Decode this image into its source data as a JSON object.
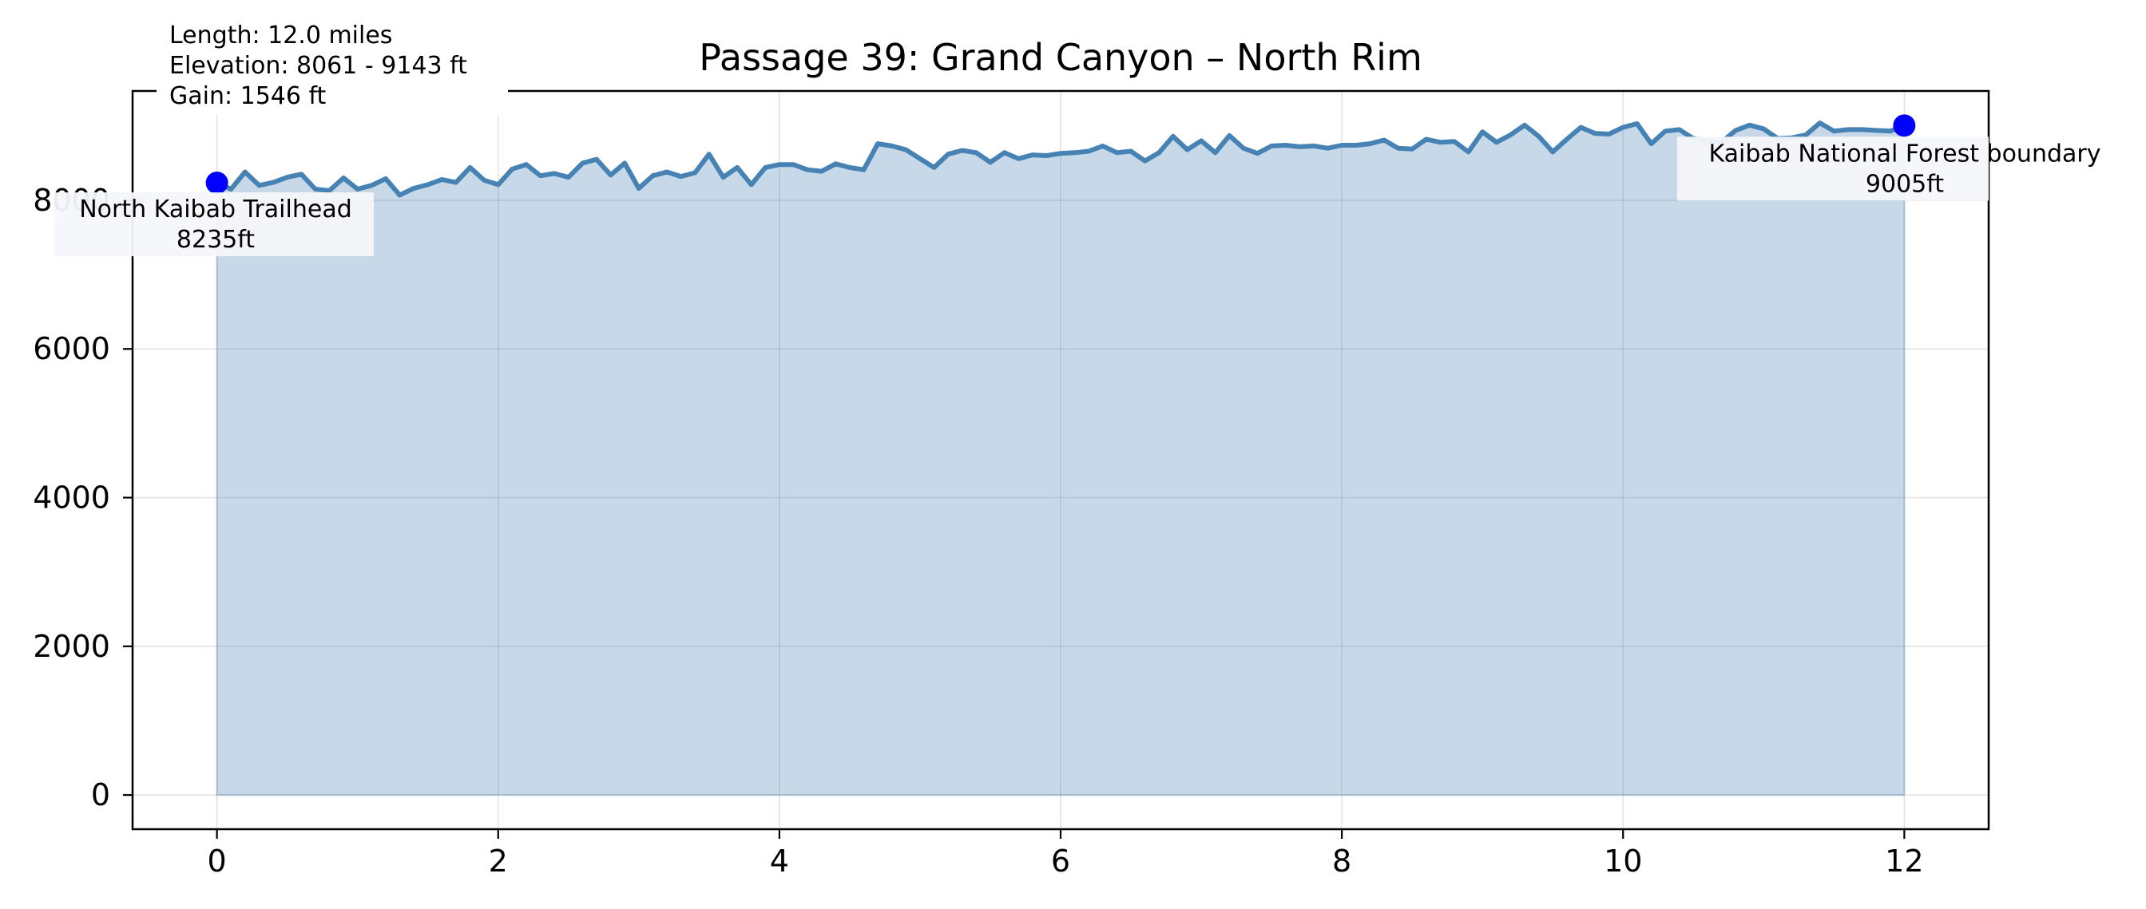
{
  "chart_data": {
    "type": "area",
    "title": "Passage 39: Grand Canyon – North Rim",
    "xlabel": "",
    "ylabel": "",
    "xlim": [
      -0.6,
      12.6
    ],
    "ylim": [
      -460,
      9470
    ],
    "x_ticks": [
      0,
      2,
      4,
      6,
      8,
      10,
      12
    ],
    "x_tick_labels": [
      "0",
      "2",
      "4",
      "6",
      "8",
      "10",
      "12"
    ],
    "y_ticks": [
      0,
      2000,
      4000,
      6000,
      8000
    ],
    "y_tick_labels": [
      "0",
      "2000",
      "4000",
      "6000",
      "8000"
    ],
    "grid": true,
    "line_color": "#4682b4",
    "fill_color": "#4682b4",
    "fill_opacity": 0.3,
    "marker_color": "#0000ff",
    "stats": {
      "length": "Length: 12.0 miles",
      "elevation": "Elevation: 8061 - 9143 ft",
      "gain": "Gain: 1546 ft"
    },
    "series": [
      {
        "x": [
          0,
          0.1,
          0.2,
          0.3,
          0.4,
          0.5,
          0.6,
          0.7,
          0.8,
          0.9,
          1.0,
          1.1,
          1.2,
          1.3,
          1.4,
          1.5,
          1.6,
          1.7,
          1.8,
          1.9,
          2.0,
          2.1,
          2.2,
          2.3,
          2.4,
          2.5,
          2.6,
          2.7,
          2.8,
          2.9,
          3.0,
          3.1,
          3.2,
          3.3,
          3.4,
          3.5,
          3.6,
          3.7,
          3.8,
          3.9,
          4.0,
          4.1,
          4.2,
          4.3,
          4.4,
          4.5,
          4.6,
          4.7,
          4.8,
          4.9,
          5.0,
          5.1,
          5.2,
          5.3,
          5.4,
          5.5,
          5.6,
          5.7,
          5.8,
          5.9,
          6.0,
          6.1,
          6.2,
          6.3,
          6.4,
          6.5,
          6.6,
          6.7,
          6.8,
          6.9,
          7.0,
          7.1,
          7.2,
          7.3,
          7.4,
          7.5,
          7.6,
          7.7,
          7.8,
          7.9,
          8.0,
          8.1,
          8.2,
          8.3,
          8.4,
          8.5,
          8.6,
          8.7,
          8.8,
          8.9,
          9.0,
          9.1,
          9.2,
          9.3,
          9.4,
          9.5,
          9.6,
          9.7,
          9.8,
          9.9,
          10.0,
          10.1,
          10.2,
          10.3,
          10.4,
          10.5,
          10.6,
          10.7,
          10.8,
          10.9,
          11.0,
          11.1,
          11.2,
          11.3,
          11.4,
          11.5,
          11.6,
          11.7,
          11.8,
          11.9,
          12.0
        ],
        "y": [
          8235,
          8150,
          8380,
          8200,
          8240,
          8310,
          8350,
          8150,
          8130,
          8300,
          8150,
          8200,
          8290,
          8070,
          8160,
          8210,
          8280,
          8240,
          8440,
          8270,
          8210,
          8420,
          8480,
          8330,
          8360,
          8310,
          8500,
          8550,
          8340,
          8500,
          8160,
          8330,
          8380,
          8320,
          8370,
          8620,
          8310,
          8440,
          8210,
          8440,
          8480,
          8480,
          8410,
          8390,
          8490,
          8440,
          8410,
          8760,
          8730,
          8680,
          8560,
          8440,
          8620,
          8670,
          8640,
          8510,
          8640,
          8560,
          8610,
          8600,
          8630,
          8640,
          8660,
          8730,
          8640,
          8660,
          8530,
          8640,
          8860,
          8680,
          8800,
          8640,
          8870,
          8700,
          8630,
          8730,
          8740,
          8720,
          8730,
          8700,
          8740,
          8740,
          8760,
          8810,
          8700,
          8690,
          8820,
          8780,
          8790,
          8650,
          8920,
          8780,
          8880,
          9010,
          8860,
          8650,
          8820,
          8980,
          8900,
          8890,
          8980,
          9030,
          8760,
          8930,
          8950,
          8830,
          8800,
          8780,
          8940,
          9010,
          8960,
          8830,
          8840,
          8880,
          9040,
          8930,
          8950,
          8950,
          8940,
          8930,
          9005
        ]
      }
    ],
    "annotations": [
      {
        "label": "North Kaibab Trailhead",
        "value": "8235ft",
        "x": 0,
        "y": 8235
      },
      {
        "label": "Kaibab National Forest boundary",
        "value": "9005ft",
        "x": 12,
        "y": 9005
      }
    ]
  }
}
